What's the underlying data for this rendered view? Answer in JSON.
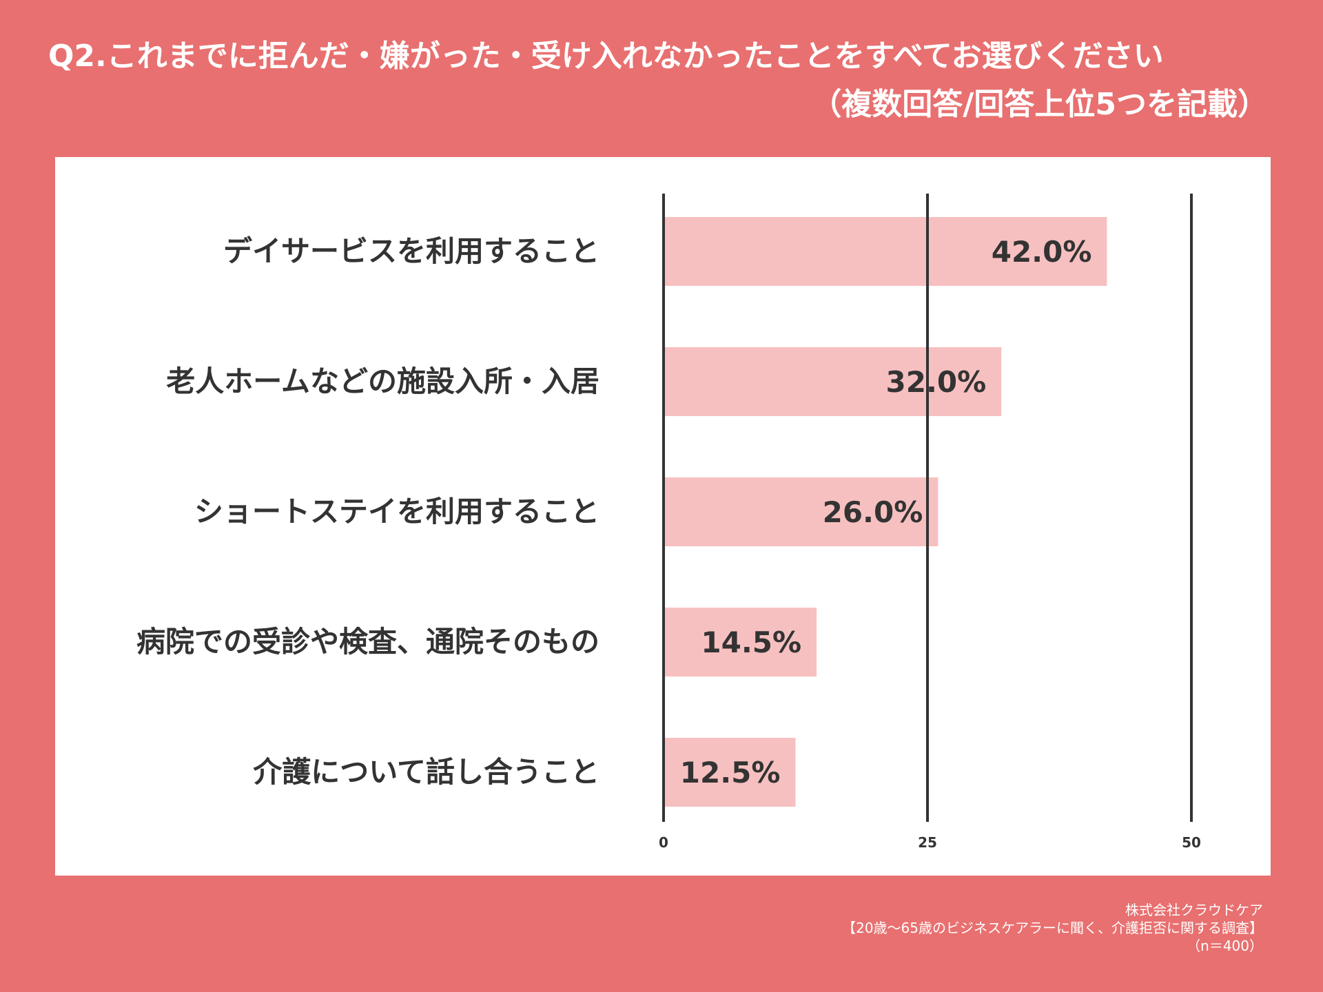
{
  "title": {
    "line1": "Q2.これまでに拒んだ・嫌がった・受け入れなかったことをすべてお選びください",
    "line2": "（複数回答/回答上位5つを記載）"
  },
  "footer": {
    "company": "株式会社クラウドケア",
    "survey": "【20歳〜65歳のビジネスケアラーに聞く、介護拒否に関する調査】",
    "sample": "（n＝400）"
  },
  "colors": {
    "background": "#e87070",
    "bar": "#f7c0c0",
    "axis": "#333333",
    "text": "#333333"
  },
  "chart_data": {
    "type": "bar",
    "orientation": "horizontal",
    "categories": [
      "デイサービスを利用すること",
      "老人ホームなどの施設入所・入居",
      "ショートステイを利用すること",
      "病院での受診や検査、通院そのもの",
      "介護について話し合うこと"
    ],
    "values": [
      42.0,
      32.0,
      26.0,
      14.5,
      12.5
    ],
    "data_labels": [
      "42.0%",
      "32.0%",
      "26.0%",
      "14.5%",
      "12.5%"
    ],
    "xlim": [
      0,
      50
    ],
    "xticks": [
      0,
      25,
      50
    ],
    "grid": true,
    "legend": "none"
  }
}
